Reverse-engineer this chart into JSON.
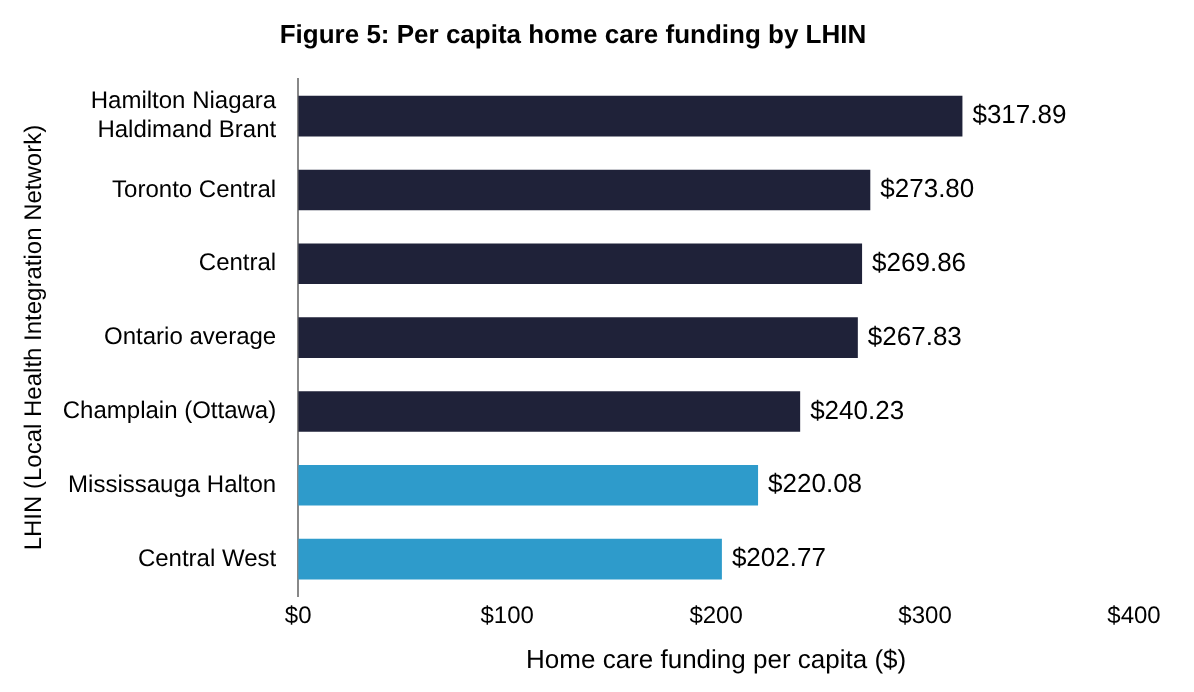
{
  "chart_data": {
    "type": "bar",
    "orientation": "horizontal",
    "title": "Figure 5: Per capita home care funding by LHIN",
    "xlabel": "Home care funding per capita ($)",
    "ylabel": "LHIN (Local Health Integration Network)",
    "categories": [
      "Hamilton Niagara Haldimand Brant",
      "Toronto Central",
      "Central",
      "Ontario average",
      "Champlain (Ottawa)",
      "Mississauga Halton",
      "Central West"
    ],
    "values": [
      317.89,
      273.8,
      269.86,
      267.83,
      240.23,
      220.08,
      202.77
    ],
    "colors": [
      "#1f2239",
      "#1f2239",
      "#1f2239",
      "#1f2239",
      "#1f2239",
      "#2e9bcb",
      "#2e9bcb"
    ],
    "value_labels": [
      "$317.89",
      "$273.80",
      "$269.86",
      "$267.83",
      "$240.23",
      "$220.08",
      "$202.77"
    ],
    "xlim": [
      0,
      400
    ],
    "xticks": [
      {
        "value": 0,
        "label": "$0"
      },
      {
        "value": 100,
        "label": "$100"
      },
      {
        "value": 200,
        "label": "$200"
      },
      {
        "value": 300,
        "label": "$300"
      },
      {
        "value": 400,
        "label": "$400"
      }
    ],
    "grid": false,
    "legend": false
  }
}
